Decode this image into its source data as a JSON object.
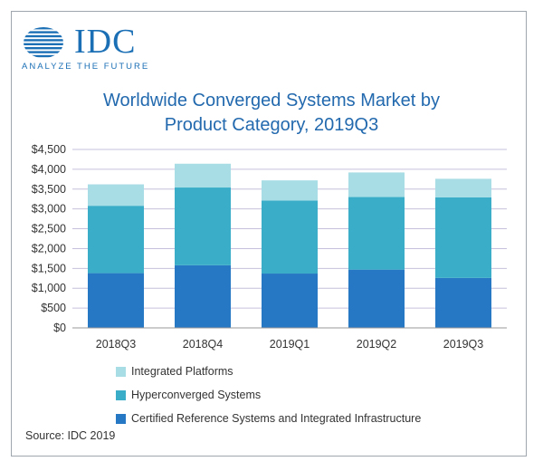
{
  "header": {
    "logo_text": "IDC",
    "logo_tagline": "ANALYZE THE FUTURE",
    "title_line1": "Worldwide Converged Systems Market by",
    "title_line2": "Product Category, 2019Q3"
  },
  "footer": {
    "source": "Source: IDC 2019"
  },
  "colors": {
    "brand": "#1a6fb5",
    "grid": "#c6c0dc",
    "axis": "#999999"
  },
  "chart_data": {
    "type": "bar",
    "stacked": true,
    "title": "Worldwide Converged Systems Market by Product Category, 2019Q3",
    "categories": [
      "2018Q3",
      "2018Q4",
      "2019Q1",
      "2019Q2",
      "2019Q3"
    ],
    "ylim": [
      0,
      4500
    ],
    "yticks": [
      0,
      500,
      1000,
      1500,
      2000,
      2500,
      3000,
      3500,
      4000,
      4500
    ],
    "ytick_labels": [
      "$0",
      "$500",
      "$1,000",
      "$1,500",
      "$2,000",
      "$2,500",
      "$3,000",
      "$3,500",
      "$4,000",
      "$4,500"
    ],
    "grid": true,
    "legend_placement": "bottom",
    "series": [
      {
        "name": "Certified Reference Systems and Integrated Infrastructure",
        "color": "#2778c4",
        "values": [
          1380,
          1580,
          1370,
          1470,
          1260
        ]
      },
      {
        "name": "Hyperconverged Systems",
        "color": "#3aaec8",
        "values": [
          1700,
          1960,
          1840,
          1830,
          2030
        ]
      },
      {
        "name": "Integrated Platforms",
        "color": "#a8dde6",
        "values": [
          540,
          600,
          510,
          620,
          470
        ]
      }
    ],
    "legend_order": [
      2,
      1,
      0
    ]
  }
}
